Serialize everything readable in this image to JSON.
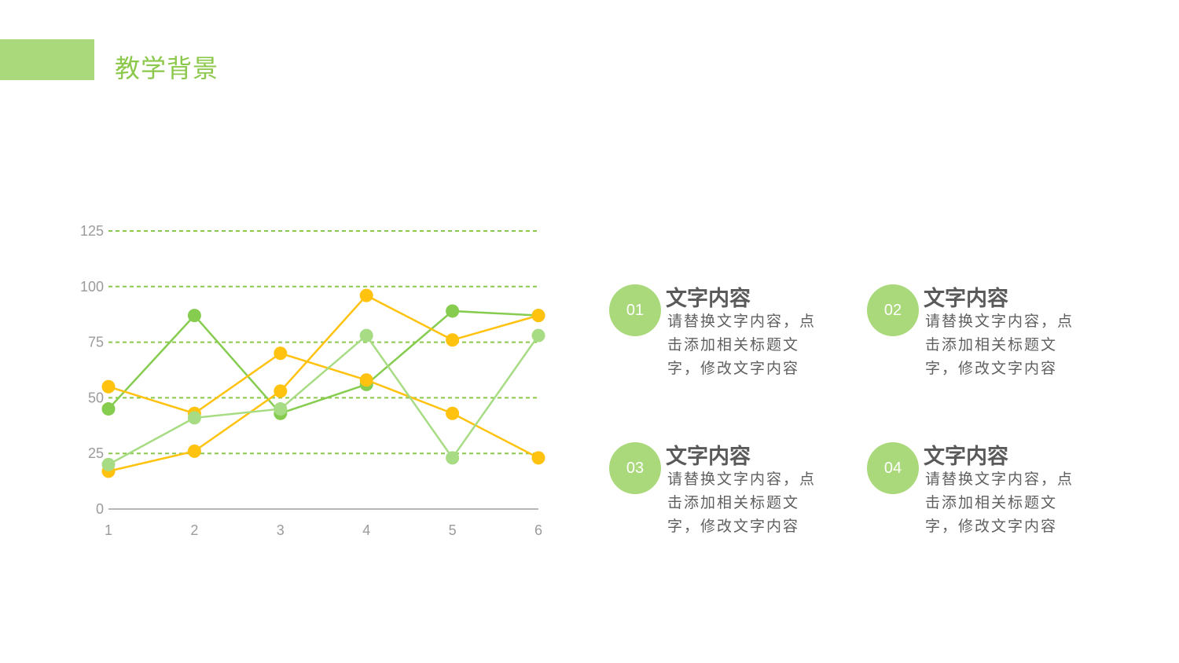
{
  "page": {
    "title": "教学背景"
  },
  "colors": {
    "accent": "#8cc84b",
    "bar": "#a9d97a",
    "green_dark": "#86cc4f",
    "green_light": "#a8dc84",
    "yellow": "#ffc20e",
    "grid": "#8cc84b"
  },
  "chart_data": {
    "type": "line",
    "categories": [
      "1",
      "2",
      "3",
      "4",
      "5",
      "6"
    ],
    "y_ticks": [
      "0",
      "25",
      "50",
      "75",
      "100",
      "125"
    ],
    "ylim": [
      0,
      125
    ],
    "grid": true,
    "series": [
      {
        "color": "#86cc4f",
        "values": [
          45,
          87,
          43,
          56,
          89,
          87
        ]
      },
      {
        "color": "#ffc20e",
        "values": [
          17,
          26,
          53,
          96,
          76,
          87
        ]
      },
      {
        "color": "#ffc20e",
        "values": [
          55,
          43,
          70,
          58,
          43,
          23
        ]
      },
      {
        "color": "#a8dc84",
        "values": [
          20,
          41,
          45,
          78,
          23,
          78
        ]
      }
    ]
  },
  "items": [
    {
      "num": "01",
      "title": "文字内容",
      "body": "请替换文字内容，点击添加相关标题文字，修改文字内容"
    },
    {
      "num": "02",
      "title": "文字内容",
      "body": "请替换文字内容，点击添加相关标题文字，修改文字内容"
    },
    {
      "num": "03",
      "title": "文字内容",
      "body": "请替换文字内容，点击添加相关标题文字，修改文字内容"
    },
    {
      "num": "04",
      "title": "文字内容",
      "body": "请替换文字内容，点击添加相关标题文字，修改文字内容"
    }
  ]
}
